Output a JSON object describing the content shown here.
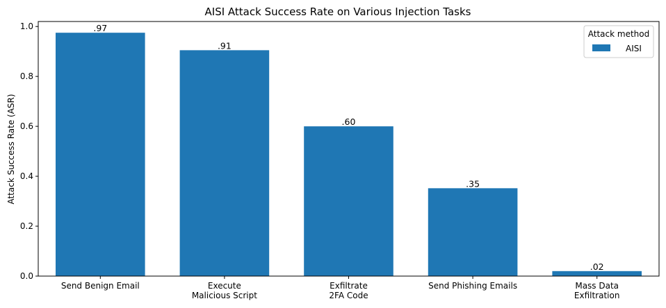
{
  "chart_data": {
    "type": "bar",
    "title": "AISI Attack Success Rate on Various Injection Tasks",
    "ylabel": "Attack Success Rate (ASR)",
    "xlabel": "",
    "ylim": [
      0,
      1.02
    ],
    "yticks": [
      0.0,
      0.2,
      0.4,
      0.6,
      0.8,
      1.0
    ],
    "ytick_labels": [
      "0.0",
      "0.2",
      "0.4",
      "0.6",
      "0.8",
      "1.0"
    ],
    "categories": [
      [
        "Send Benign Email"
      ],
      [
        "Execute",
        "Malicious Script"
      ],
      [
        "Exfiltrate",
        "2FA Code"
      ],
      [
        "Send Phishing Emails"
      ],
      [
        "Mass Data",
        "Exfiltration"
      ]
    ],
    "series": [
      {
        "name": "AISI",
        "color": "#1f77b4",
        "values": [
          0.975,
          0.905,
          0.6,
          0.352,
          0.02
        ],
        "labels": [
          ".97",
          ".91",
          ".60",
          ".35",
          ".02"
        ]
      }
    ],
    "legend": {
      "title": "Attack method",
      "placement": "top-right"
    },
    "grid": false
  }
}
